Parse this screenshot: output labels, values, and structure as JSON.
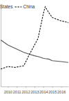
{
  "chart_data": {
    "type": "line",
    "x": [
      2009.2,
      2010,
      2010.8,
      2011.8,
      2012.4,
      2013,
      2013.4,
      2014,
      2014.2,
      2014.6,
      2015,
      2016,
      2016.8
    ],
    "series": [
      {
        "name": "States",
        "color": "#555555",
        "line_style": "solid",
        "values": [
          56,
          50,
          46,
          41,
          39,
          37,
          36,
          34,
          33.5,
          33,
          31,
          30,
          29
        ]
      },
      {
        "name": "China",
        "color": "#111111",
        "line_style": "dashed",
        "values": [
          21,
          24,
          23,
          25,
          38,
          50,
          58,
          88,
          96,
          89,
          83,
          79,
          77
        ]
      }
    ],
    "xlim": [
      2009.2,
      2016.8
    ],
    "xticks": [
      2010,
      2011,
      2012,
      2013,
      2014,
      2015,
      2016
    ],
    "ylim": [
      0,
      100
    ],
    "tick_labels": "x",
    "legend": "top-left"
  }
}
